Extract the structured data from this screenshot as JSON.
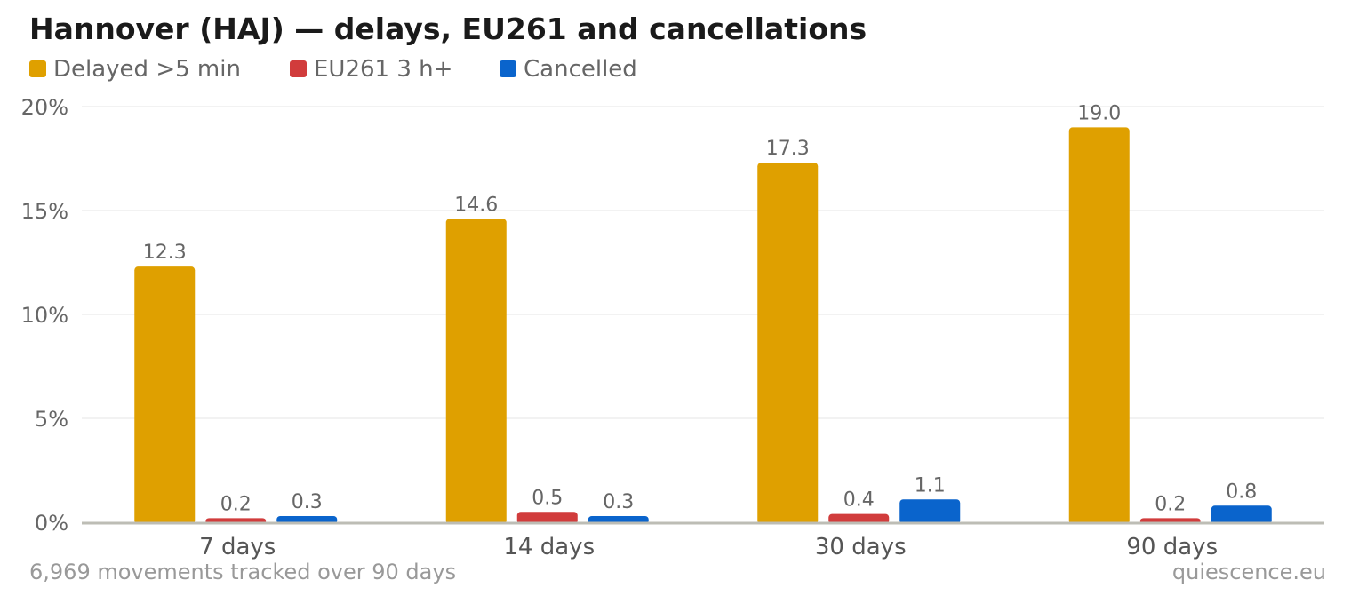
{
  "chart_data": {
    "type": "bar",
    "title": "Hannover (HAJ) — delays, EU261 and cancellations",
    "categories": [
      "7 days",
      "14 days",
      "30 days",
      "90 days"
    ],
    "series": [
      {
        "name": "Delayed >5 min",
        "color": "#DFA000",
        "values": [
          12.3,
          14.6,
          17.3,
          19.0
        ],
        "labels": [
          "12.3",
          "14.6",
          "17.3",
          "19.0"
        ]
      },
      {
        "name": "EU261 3 h+",
        "color": "#D13C3C",
        "values": [
          0.2,
          0.5,
          0.4,
          0.2
        ],
        "labels": [
          "0.2",
          "0.5",
          "0.4",
          "0.2"
        ]
      },
      {
        "name": "Cancelled",
        "color": "#0A64CC",
        "values": [
          0.3,
          0.3,
          1.1,
          0.8
        ],
        "labels": [
          "0.3",
          "0.3",
          "1.1",
          "0.8"
        ]
      }
    ],
    "ylim": [
      0,
      20
    ],
    "yticks": [
      "0%",
      "5%",
      "10%",
      "15%",
      "20%"
    ],
    "ytick_values": [
      0,
      5,
      10,
      15,
      20
    ],
    "xlabel": "",
    "ylabel": "",
    "grid": true,
    "legend_placement": "top-left"
  },
  "footer": {
    "note": "6,969 movements tracked over 90 days",
    "source": "quiescence.eu"
  }
}
